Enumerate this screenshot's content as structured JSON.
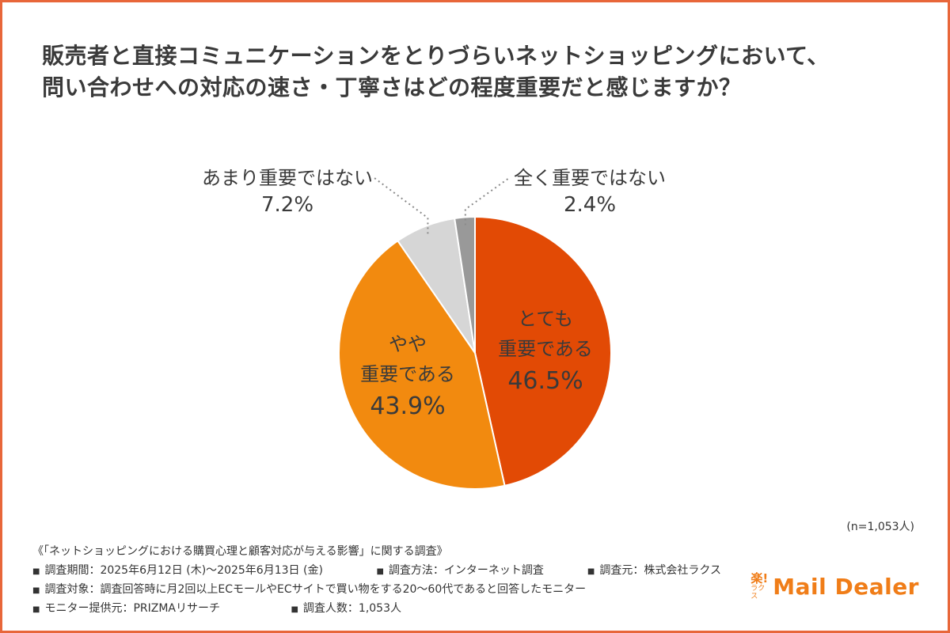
{
  "title_lines": [
    "販売者と直接コミュニケーションをとりづらいネットショッピングにおいて、",
    "問い合わせへの対応の速さ・丁寧さはどの程度重要だと感じますか？"
  ],
  "colors": {
    "frame": "#e8663a",
    "label_dark": "#3a3a3a",
    "leader": "#8a8a8a"
  },
  "chart_data": {
    "type": "pie",
    "slices": [
      {
        "label_lines": [
          "とても",
          "重要である"
        ],
        "value": 46.5,
        "value_text": "46.5%",
        "color": "#e24a05",
        "label_position": "inside"
      },
      {
        "label_lines": [
          "やや",
          "重要である"
        ],
        "value": 43.9,
        "value_text": "43.9%",
        "color": "#f28a0f",
        "label_position": "inside"
      },
      {
        "label_lines": [
          "あまり重要ではない"
        ],
        "value": 7.2,
        "value_text": "7.2%",
        "color": "#d6d6d6",
        "label_position": "outside"
      },
      {
        "label_lines": [
          "全く重要ではない"
        ],
        "value": 2.4,
        "value_text": "2.4%",
        "color": "#999999",
        "label_position": "outside"
      }
    ],
    "start": "12 o'clock",
    "direction": "clockwise"
  },
  "n_note": "(n=1,053人)",
  "survey": {
    "heading": "《「ネットショッピングにおける購買心理と顧客対応が与える影響」に関する調査》",
    "items": [
      [
        "調査期間：2025年6月12日 (木)〜2025年6月13日 (金)",
        "調査方法：インターネット調査",
        "調査元：株式会社ラクス"
      ],
      [
        "調査対象：調査回答時に月2回以上ECモールやECサイトで買い物をする20〜60代であると回答したモニター"
      ],
      [
        "モニター提供元：PRIZMAリサーチ",
        "調査人数：1,053人"
      ]
    ]
  },
  "logo": {
    "mark_top": "楽!",
    "mark_bottom": "ラクス",
    "text": "Mail Dealer"
  }
}
